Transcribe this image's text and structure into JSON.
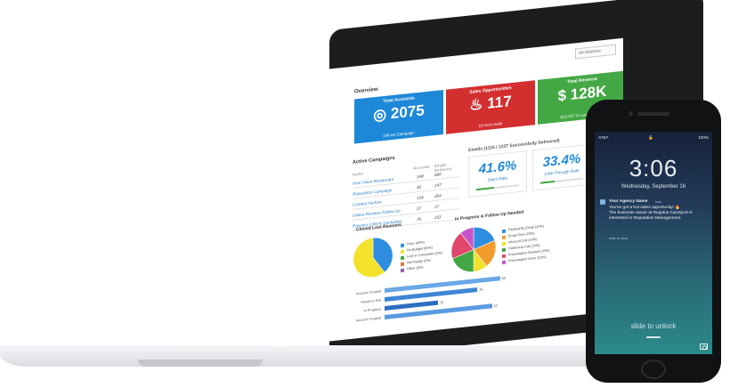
{
  "filter": {
    "placeholder": "All Markets"
  },
  "overview": {
    "title": "Overview",
    "cards": [
      {
        "title": "Total Accounts",
        "value": "2075",
        "sub": "148 on Campaign",
        "icon": "globe-icon",
        "color": "#1e88d8"
      },
      {
        "title": "Sales Opportunities",
        "value": "117",
        "sub": "19 Hot Leads",
        "icon": "flame-icon",
        "color": "#d32f2f"
      },
      {
        "title": "Total Revenue",
        "value": "$ 128K",
        "sub": "$12,057 In Last 30 Days",
        "icon": "",
        "color": "#43a843"
      }
    ]
  },
  "campaigns": {
    "title": "Active Campaigns",
    "headers": {
      "name": "Name",
      "accounts": "Accounts",
      "emails": "Emails Delivered"
    },
    "rows": [
      {
        "name": "New Client Restaurant",
        "accounts": "148",
        "emails": "680"
      },
      {
        "name": "Reputation Campaign",
        "accounts": "46",
        "emails": "147"
      },
      {
        "name": "Content Nurture",
        "accounts": "134",
        "emails": "454"
      },
      {
        "name": "Online Reviews Follow Up",
        "accounts": "27",
        "emails": "27"
      },
      {
        "name": "Previous Clients Campaign",
        "accounts": "76",
        "emails": "231"
      }
    ]
  },
  "emails": {
    "title": "Emails (1116 / 1237 Successfully Delivered)",
    "open_rate": {
      "value": "41.6%",
      "label": "Open Rate",
      "fill": 0.416
    },
    "click_rate": {
      "value": "33.4%",
      "label": "Click Through Rate",
      "fill": 0.334
    }
  },
  "closed_lost": {
    "title": "Closed Lost Reasons",
    "slices": [
      {
        "label": "Price (40%)",
        "value": 40,
        "color": "#2f8ee0"
      },
      {
        "label": "No Budget (60%)",
        "value": 60,
        "color": "#f2e22c"
      },
      {
        "label": "Lost to Competitor (0%)",
        "value": 0,
        "color": "#43a843"
      },
      {
        "label": "Not Ready (0%)",
        "value": 0,
        "color": "#e0763a"
      },
      {
        "label": "Other (0%)",
        "value": 0,
        "color": "#9b59b6"
      }
    ]
  },
  "in_progress": {
    "title": "In Progress & Follow Up Needed",
    "slices": [
      {
        "label": "Replied By Email (20%)",
        "value": 20,
        "color": "#2f8ee0"
      },
      {
        "label": "Email Sent (20%)",
        "value": 20,
        "color": "#f29c2c"
      },
      {
        "label": "Inbound Call (10%)",
        "value": 10,
        "color": "#f2e22c"
      },
      {
        "label": "Outbound Call (20%)",
        "value": 20,
        "color": "#43a843"
      },
      {
        "label": "Presentation Booked (20%)",
        "value": 20,
        "color": "#e0476b"
      },
      {
        "label": "Presentation Done (10%)",
        "value": 10,
        "color": "#c455c9"
      }
    ]
  },
  "funnel": {
    "max": 100,
    "bars": [
      {
        "label": "Account Created",
        "value": 56,
        "color": "#6aa8e6"
      },
      {
        "label": "Ready to Sell",
        "value": 45,
        "color": "#3f86d4"
      },
      {
        "label": "In Progress",
        "value": 26,
        "color": "#2d6fc0"
      },
      {
        "label": "Account Created",
        "value": 52,
        "color": "#5a9ae0"
      }
    ]
  },
  "phone": {
    "carrier": "AT&T",
    "battery": "100%",
    "time": "3:06",
    "date": "Wednesday, September 16",
    "notification": {
      "app": "Your Agency Name",
      "when": "now",
      "line1": "You've got a hot sales opportunity! 🔥",
      "line2": "The business owner at Regulus Autosport is interested in Reputation Management.",
      "action": "slide to view"
    },
    "slide_text": "slide to unlock"
  }
}
